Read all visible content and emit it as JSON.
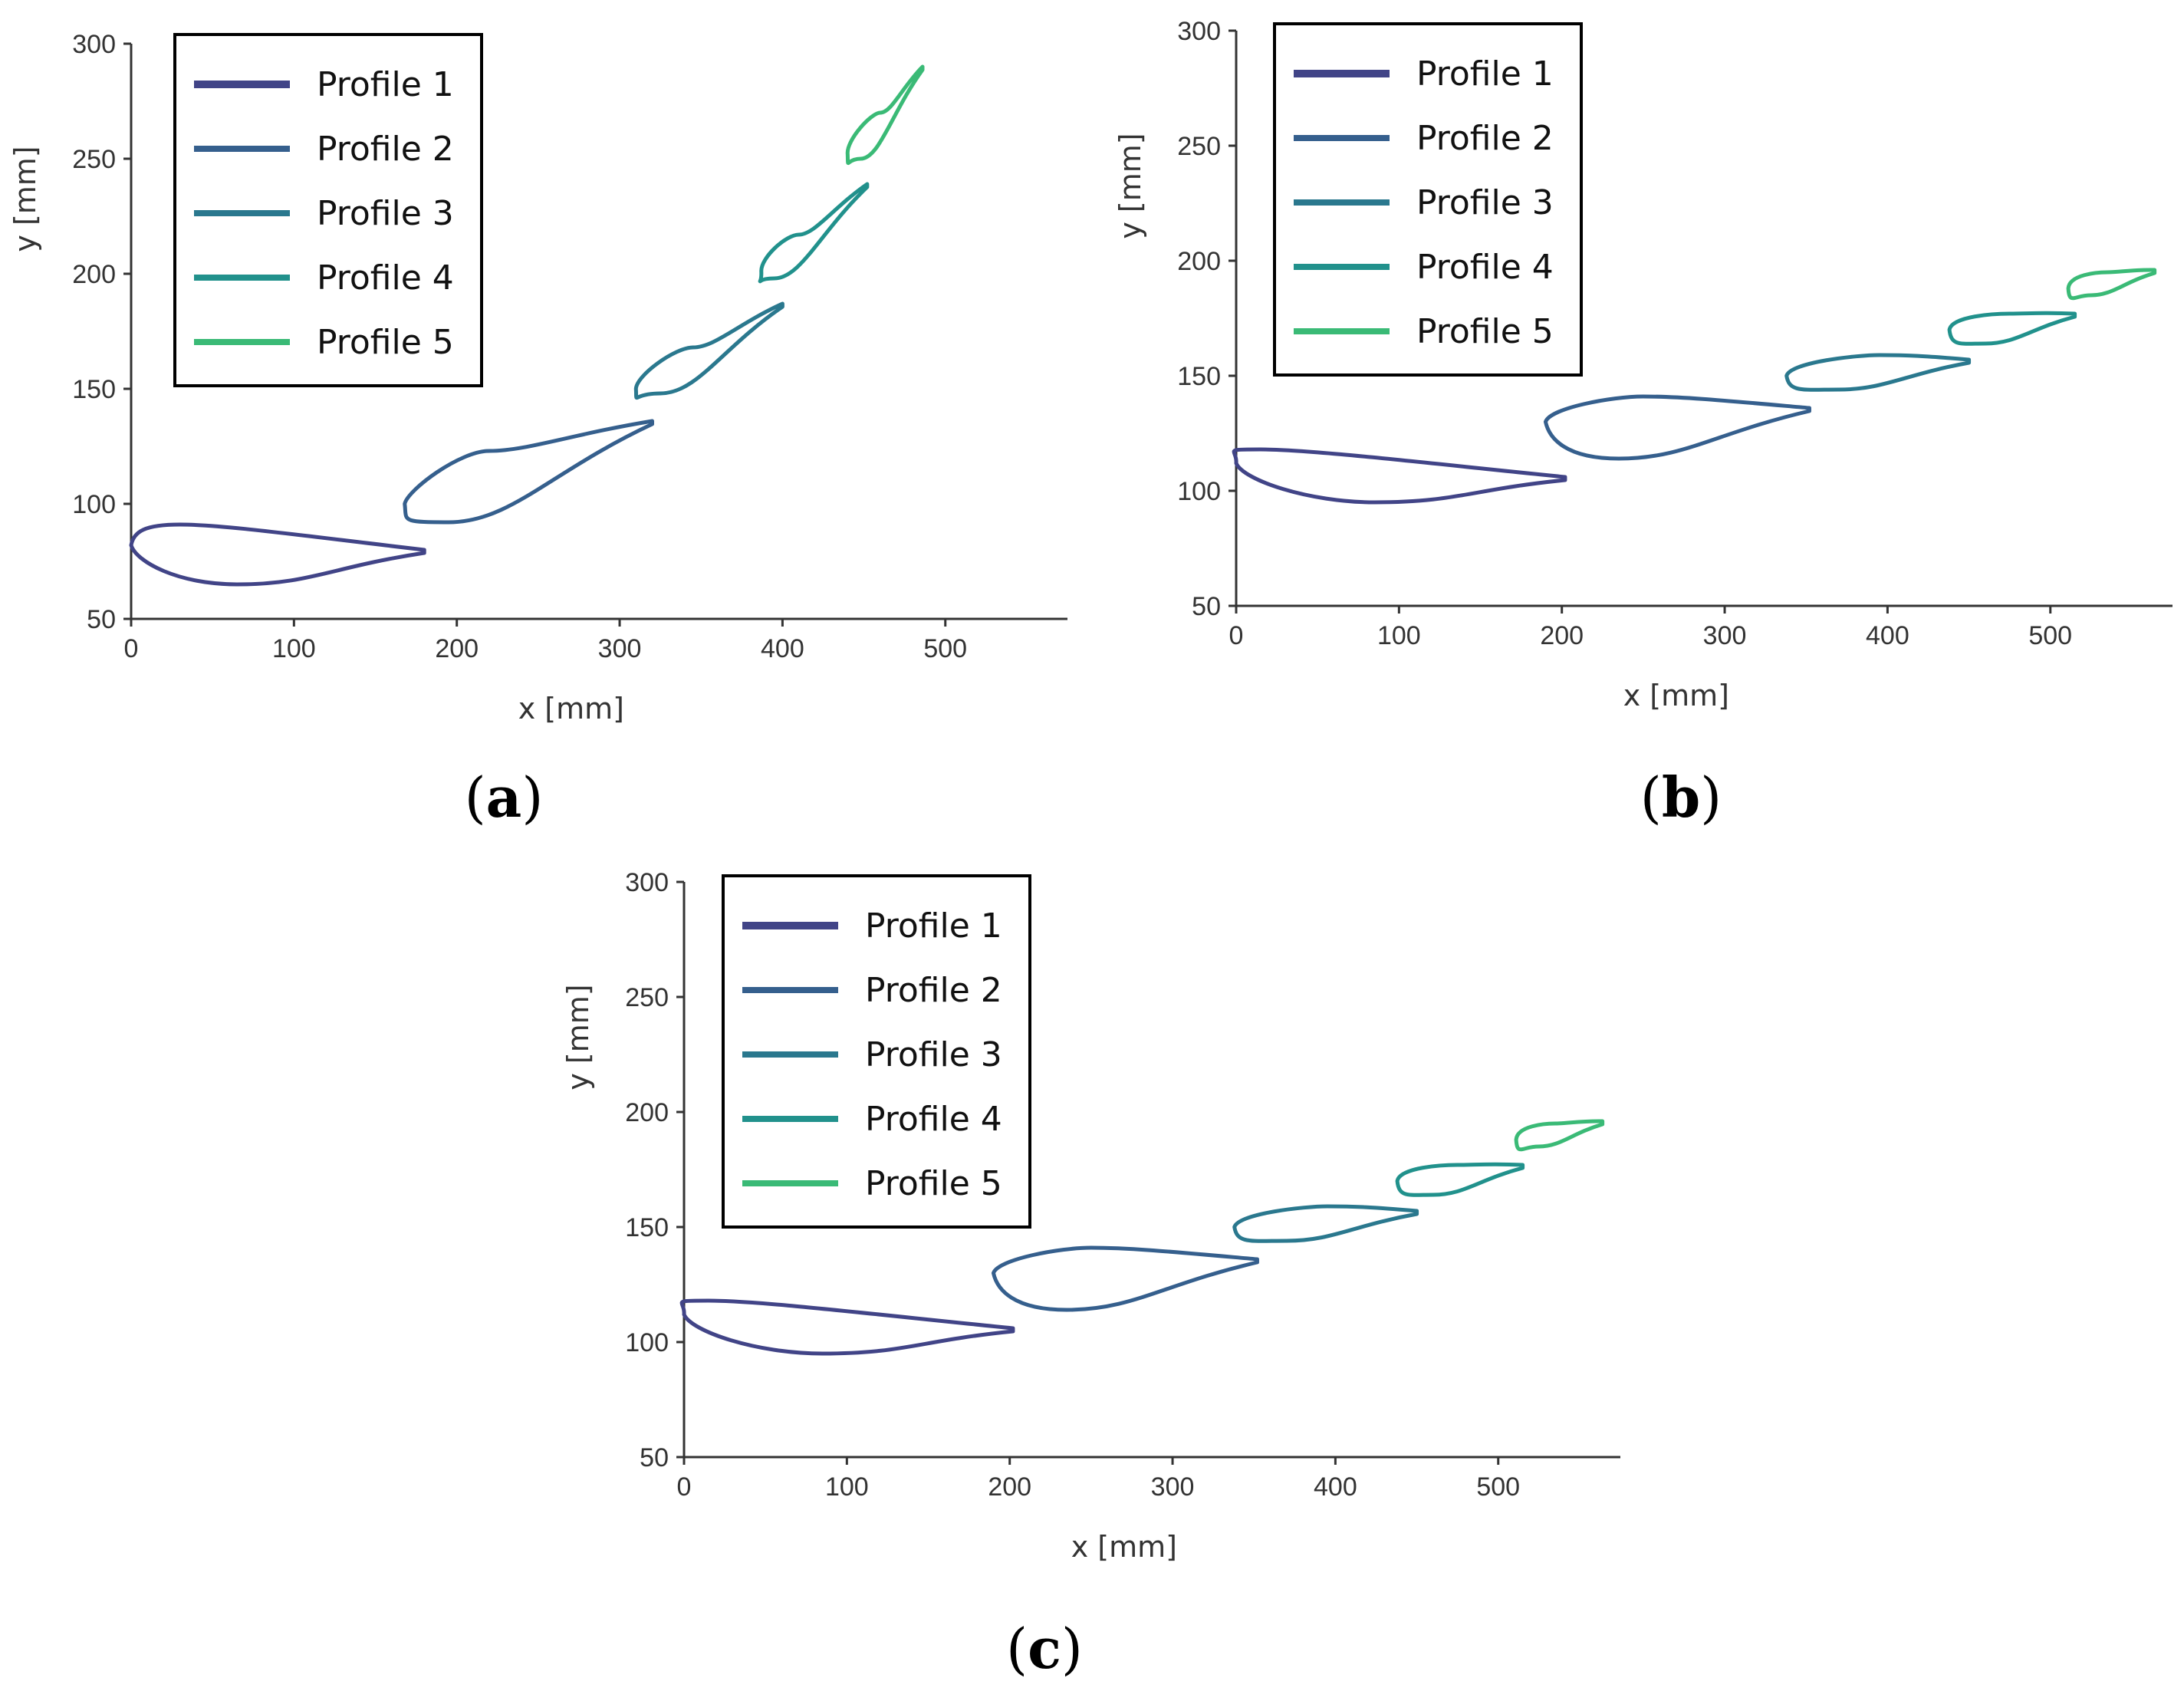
{
  "chart_data": [
    {
      "type": "line",
      "panel_label": "a",
      "xlabel": "x [mm]",
      "ylabel": "y [mm]",
      "xlim": [
        0,
        575
      ],
      "ylim": [
        50,
        300
      ],
      "xticks": [
        "0",
        "100",
        "200",
        "300",
        "400",
        "500"
      ],
      "yticks": [
        "50",
        "100",
        "150",
        "200",
        "250",
        "300"
      ],
      "legend_position": "top-left",
      "series": [
        {
          "name": "Profile 1",
          "color": "#414487",
          "leading_edge": [
            0,
            82
          ],
          "trailing_edge": [
            180,
            80
          ],
          "upper_peak": [
            30,
            91
          ],
          "lower_peak": [
            65,
            65
          ]
        },
        {
          "name": "Profile 2",
          "color": "#355f8d",
          "leading_edge": [
            168,
            100
          ],
          "trailing_edge": [
            320,
            136
          ],
          "upper_peak": [
            220,
            123
          ],
          "lower_peak": [
            195,
            92
          ]
        },
        {
          "name": "Profile 3",
          "color": "#2a788e",
          "leading_edge": [
            310,
            150
          ],
          "trailing_edge": [
            400,
            187
          ],
          "upper_peak": [
            345,
            168
          ],
          "lower_peak": [
            325,
            148
          ]
        },
        {
          "name": "Profile 4",
          "color": "#21918c",
          "leading_edge": [
            387,
            201
          ],
          "trailing_edge": [
            452,
            239
          ],
          "upper_peak": [
            410,
            217
          ],
          "lower_peak": [
            395,
            198
          ]
        },
        {
          "name": "Profile 5",
          "color": "#3aba76",
          "leading_edge": [
            440,
            252
          ],
          "trailing_edge": [
            486,
            290
          ],
          "upper_peak": [
            460,
            270
          ],
          "lower_peak": [
            448,
            250
          ]
        }
      ]
    },
    {
      "type": "line",
      "panel_label": "b",
      "xlabel": "x [mm]",
      "ylabel": "y [mm]",
      "xlim": [
        0,
        575
      ],
      "ylim": [
        50,
        300
      ],
      "xticks": [
        "0",
        "100",
        "200",
        "300",
        "400",
        "500"
      ],
      "yticks": [
        "50",
        "100",
        "150",
        "200",
        "250",
        "300"
      ],
      "legend_position": "top-left",
      "series": [
        {
          "name": "Profile 1",
          "color": "#414487",
          "leading_edge": [
            0,
            112
          ],
          "trailing_edge": [
            202,
            106
          ],
          "upper_peak": [
            15,
            118
          ],
          "lower_peak": [
            85,
            95
          ]
        },
        {
          "name": "Profile 2",
          "color": "#355f8d",
          "leading_edge": [
            190,
            130
          ],
          "trailing_edge": [
            352,
            136
          ],
          "upper_peak": [
            250,
            141
          ],
          "lower_peak": [
            235,
            114
          ]
        },
        {
          "name": "Profile 3",
          "color": "#2a788e",
          "leading_edge": [
            338,
            150
          ],
          "trailing_edge": [
            450,
            157
          ],
          "upper_peak": [
            395,
            159
          ],
          "lower_peak": [
            370,
            144
          ]
        },
        {
          "name": "Profile 4",
          "color": "#21918c",
          "leading_edge": [
            438,
            170
          ],
          "trailing_edge": [
            515,
            177
          ],
          "upper_peak": [
            475,
            177
          ],
          "lower_peak": [
            460,
            164
          ]
        },
        {
          "name": "Profile 5",
          "color": "#3aba76",
          "leading_edge": [
            511,
            188
          ],
          "trailing_edge": [
            564,
            196
          ],
          "upper_peak": [
            535,
            195
          ],
          "lower_peak": [
            525,
            185
          ]
        }
      ]
    },
    {
      "type": "line",
      "panel_label": "c",
      "xlabel": "x [mm]",
      "ylabel": "y [mm]",
      "xlim": [
        0,
        575
      ],
      "ylim": [
        50,
        300
      ],
      "xticks": [
        "0",
        "100",
        "200",
        "300",
        "400",
        "500"
      ],
      "yticks": [
        "50",
        "100",
        "150",
        "200",
        "250",
        "300"
      ],
      "legend_position": "top-left",
      "series": [
        {
          "name": "Profile 1",
          "color": "#414487",
          "leading_edge": [
            0,
            112
          ],
          "trailing_edge": [
            202,
            106
          ],
          "upper_peak": [
            15,
            118
          ],
          "lower_peak": [
            85,
            95
          ]
        },
        {
          "name": "Profile 2",
          "color": "#355f8d",
          "leading_edge": [
            190,
            130
          ],
          "trailing_edge": [
            352,
            136
          ],
          "upper_peak": [
            250,
            141
          ],
          "lower_peak": [
            235,
            114
          ]
        },
        {
          "name": "Profile 3",
          "color": "#2a788e",
          "leading_edge": [
            338,
            150
          ],
          "trailing_edge": [
            450,
            157
          ],
          "upper_peak": [
            395,
            159
          ],
          "lower_peak": [
            370,
            144
          ]
        },
        {
          "name": "Profile 4",
          "color": "#21918c",
          "leading_edge": [
            438,
            170
          ],
          "trailing_edge": [
            515,
            177
          ],
          "upper_peak": [
            475,
            177
          ],
          "lower_peak": [
            460,
            164
          ]
        },
        {
          "name": "Profile 5",
          "color": "#3aba76",
          "leading_edge": [
            511,
            188
          ],
          "trailing_edge": [
            564,
            196
          ],
          "upper_peak": [
            535,
            195
          ],
          "lower_peak": [
            525,
            185
          ]
        }
      ]
    }
  ]
}
